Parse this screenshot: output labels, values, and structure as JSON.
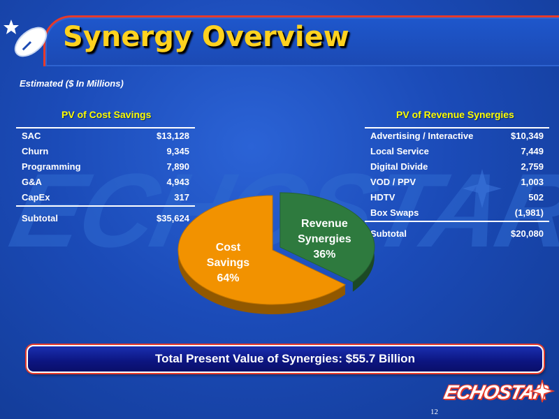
{
  "slide": {
    "title": "Synergy Overview",
    "subtitle": "Estimated ($ In Millions)",
    "total_banner": "Total Present Value of Synergies: $55.7 Billion",
    "page_number": "12",
    "watermark_text": "ECHOSTAR",
    "footer_logo_text": "ECHOSTAR"
  },
  "colors": {
    "background": "#1b4bb8",
    "title": "#ffd21f",
    "table_title": "#ffff00",
    "cost_slice": "#f29200",
    "revenue_slice": "#2e7a3e",
    "accent_red": "#e63a2a"
  },
  "chart_data": [
    {
      "type": "table",
      "title": "PV of Cost Savings",
      "rows": [
        {
          "label": "SAC",
          "value": "$13,128"
        },
        {
          "label": "Churn",
          "value": "9,345"
        },
        {
          "label": "Programming",
          "value": "7,890"
        },
        {
          "label": "G&A",
          "value": "4,943"
        },
        {
          "label": "CapEx",
          "value": "317"
        }
      ],
      "subtotal": {
        "label": "Subtotal",
        "value": "$35,624"
      }
    },
    {
      "type": "table",
      "title": "PV of Revenue Synergies",
      "rows": [
        {
          "label": "Advertising / Interactive",
          "value": "$10,349"
        },
        {
          "label": "Local Service",
          "value": "7,449"
        },
        {
          "label": "Digital Divide",
          "value": "2,759"
        },
        {
          "label": "VOD / PPV",
          "value": "1,003"
        },
        {
          "label": "HDTV",
          "value": "502"
        },
        {
          "label": "Box Swaps",
          "value": "(1,981)"
        }
      ],
      "subtotal": {
        "label": "Subtotal",
        "value": "$20,080"
      }
    },
    {
      "type": "pie",
      "title": "",
      "slices": [
        {
          "label_lines": [
            "Cost",
            "Savings",
            "64%"
          ],
          "value": 64,
          "color": "#f29200",
          "exploded": false
        },
        {
          "label_lines": [
            "Revenue",
            "Synergies",
            "36%"
          ],
          "value": 36,
          "color": "#2e7a3e",
          "exploded": true
        }
      ]
    }
  ]
}
